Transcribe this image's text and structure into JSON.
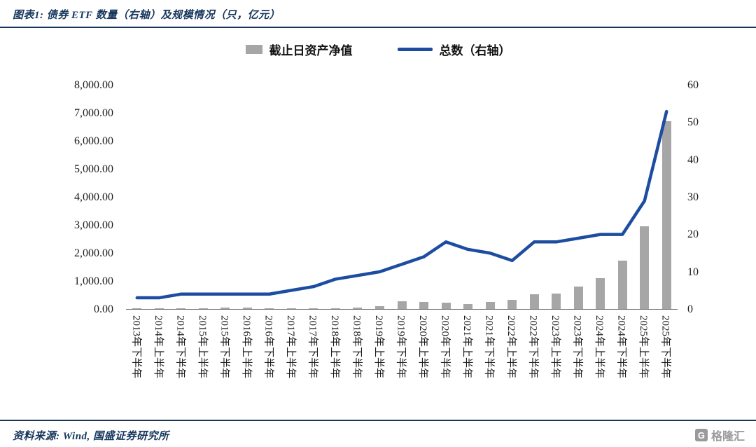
{
  "header": {
    "title": "图表1: 债券 ETF 数量（右轴）及规模情况（只，亿元）"
  },
  "footer": {
    "source": "资料来源: Wind, 国盛证券研究所",
    "logo_icon": "G",
    "logo_text": "格隆汇"
  },
  "colors": {
    "title_navy": "#16365C",
    "line_navy": "#1C4DA1",
    "bar_gray": "#A6A6A6",
    "axis_text": "#1A1A1A"
  },
  "chart_data": {
    "type": "bar",
    "subtype": "combo-bar-line",
    "title": "债券 ETF 数量（右轴）及规模情况（只，亿元）",
    "grid": false,
    "legend_position": "top",
    "categories": [
      "2013年下半年",
      "2014年上半年",
      "2014年下半年",
      "2015年上半年",
      "2015年下半年",
      "2016年上半年",
      "2016年下半年",
      "2017年上半年",
      "2017年下半年",
      "2018年上半年",
      "2018年下半年",
      "2019年上半年",
      "2019年下半年",
      "2020年上半年",
      "2020年下半年",
      "2021年上半年",
      "2021年下半年",
      "2022年上半年",
      "2022年下半年",
      "2023年上半年",
      "2023年下半年",
      "2024年上半年",
      "2024年下半年",
      "2025年上半年",
      "2025年下半年"
    ],
    "series": [
      {
        "name": "截止日资产净值",
        "type": "bar",
        "axis": "left",
        "color": "#A6A6A6",
        "values": [
          5,
          12,
          28,
          32,
          38,
          38,
          35,
          30,
          28,
          22,
          60,
          90,
          270,
          240,
          215,
          185,
          250,
          330,
          530,
          550,
          790,
          1090,
          1730,
          2950,
          6700
        ]
      },
      {
        "name": "总数（右轴）",
        "type": "line",
        "axis": "right",
        "color": "#1C4DA1",
        "values": [
          3,
          3,
          4,
          4,
          4,
          4,
          4,
          5,
          6,
          8,
          9,
          10,
          12,
          14,
          18,
          16,
          15,
          13,
          18,
          18,
          19,
          20,
          20,
          29,
          53
        ]
      }
    ],
    "left_axis": {
      "min": 0,
      "max": 8000,
      "step": 1000,
      "tick_labels": [
        "8,000.00",
        "7,000.00",
        "6,000.00",
        "5,000.00",
        "4,000.00",
        "3,000.00",
        "2,000.00",
        "1,000.00",
        "0.00"
      ]
    },
    "right_axis": {
      "min": 0,
      "max": 60,
      "step": 10,
      "tick_labels": [
        "60",
        "50",
        "40",
        "30",
        "20",
        "10",
        "0"
      ]
    }
  }
}
